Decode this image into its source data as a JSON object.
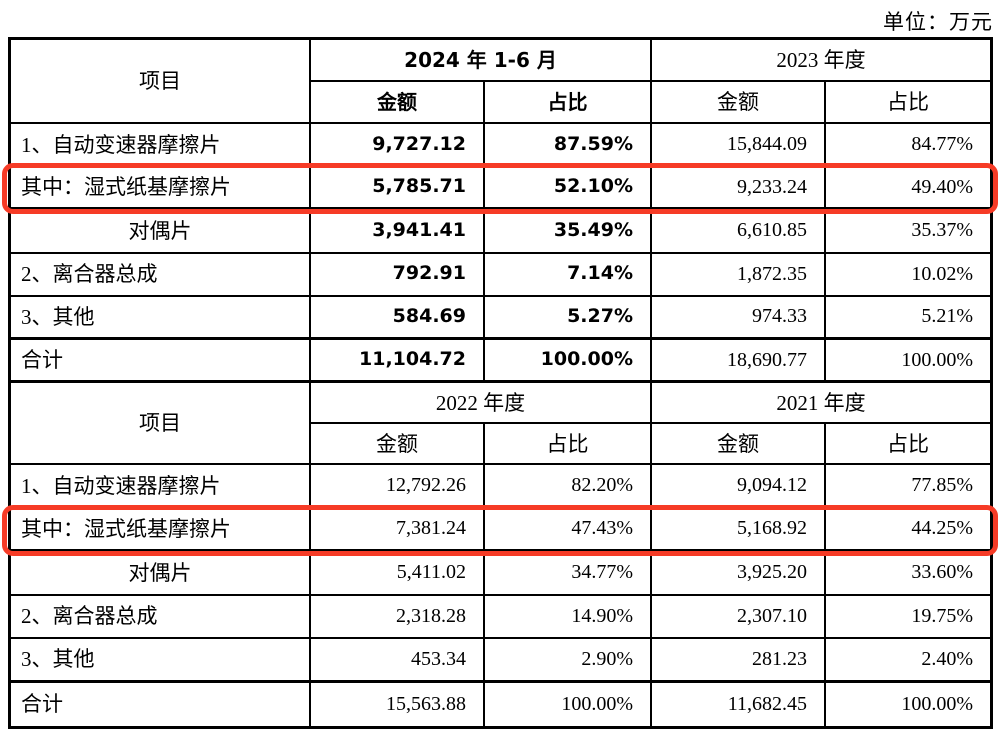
{
  "unit_label": "单位：万元",
  "colors": {
    "highlight_red": "#f63b26",
    "line_black": "#000000"
  },
  "sections": [
    {
      "item_header": "项目",
      "period_groups": [
        {
          "label": "2024 年 1-6 月",
          "emphasis": true,
          "subcols": [
            "金额",
            "占比"
          ]
        },
        {
          "label": "2023 年度",
          "emphasis": false,
          "subcols": [
            "金额",
            "占比"
          ]
        }
      ],
      "rows": [
        {
          "label": "1、自动变速器摩擦片",
          "cells": [
            "9,727.12",
            "87.59%",
            "15,844.09",
            "84.77%"
          ]
        },
        {
          "label": "其中：湿式纸基摩擦片",
          "highlighted": true,
          "cells": [
            "5,785.71",
            "52.10%",
            "9,233.24",
            "49.40%"
          ]
        },
        {
          "label": "对偶片",
          "cells": [
            "3,941.41",
            "35.49%",
            "6,610.85",
            "35.37%"
          ]
        },
        {
          "label": "2、离合器总成",
          "cells": [
            "792.91",
            "7.14%",
            "1,872.35",
            "10.02%"
          ]
        },
        {
          "label": "3、其他",
          "cells": [
            "584.69",
            "5.27%",
            "974.33",
            "5.21%"
          ]
        },
        {
          "label": "合计",
          "cells": [
            "11,104.72",
            "100.00%",
            "18,690.77",
            "100.00%"
          ]
        }
      ]
    },
    {
      "item_header": "项目",
      "period_groups": [
        {
          "label": "2022 年度",
          "emphasis": false,
          "subcols": [
            "金额",
            "占比"
          ]
        },
        {
          "label": "2021 年度",
          "emphasis": false,
          "subcols": [
            "金额",
            "占比"
          ]
        }
      ],
      "rows": [
        {
          "label": "1、自动变速器摩擦片",
          "cells": [
            "12,792.26",
            "82.20%",
            "9,094.12",
            "77.85%"
          ]
        },
        {
          "label": "其中：湿式纸基摩擦片",
          "highlighted": true,
          "cells": [
            "7,381.24",
            "47.43%",
            "5,168.92",
            "44.25%"
          ]
        },
        {
          "label": "对偶片",
          "cells": [
            "5,411.02",
            "34.77%",
            "3,925.20",
            "33.60%"
          ]
        },
        {
          "label": "2、离合器总成",
          "cells": [
            "2,318.28",
            "14.90%",
            "2,307.10",
            "19.75%"
          ]
        },
        {
          "label": "3、其他",
          "cells": [
            "453.34",
            "2.90%",
            "281.23",
            "2.40%"
          ]
        },
        {
          "label": "合计",
          "cells": [
            "15,563.88",
            "100.00%",
            "11,682.45",
            "100.00%"
          ]
        }
      ]
    }
  ]
}
